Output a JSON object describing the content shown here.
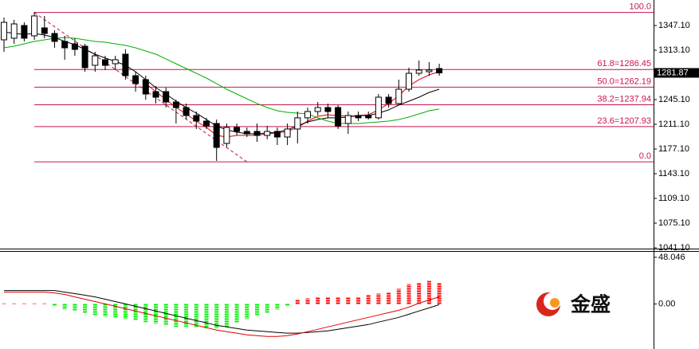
{
  "chart_data": [
    {
      "type": "candlestick",
      "ylim": [
        1040,
        1382.2
      ],
      "yticks": [
        {
          "value": 1347.1,
          "label": "1347.10"
        },
        {
          "value": 1313.1,
          "label": "1313.10"
        },
        {
          "value": 1245.1,
          "label": "1245.10"
        },
        {
          "value": 1211.1,
          "label": "1211.10"
        },
        {
          "value": 1177.1,
          "label": "1177.10"
        },
        {
          "value": 1143.1,
          "label": "1143.10"
        },
        {
          "value": 1109.1,
          "label": "1109.10"
        },
        {
          "value": 1075.1,
          "label": "1075.10"
        },
        {
          "value": 1041.1,
          "label": "1041.10"
        }
      ],
      "open": [
        1327.4,
        1329.6,
        1347.1,
        1332.9,
        1343.8,
        1336.1,
        1325.2,
        1321.9,
        1318.6,
        1292.3,
        1300.0,
        1294.5,
        1307.6,
        1278.0,
        1272.6,
        1256.1,
        1256.1,
        1241.8,
        1234.2,
        1223.2,
        1215.5,
        1212.2,
        1184.8,
        1206.8,
        1201.3,
        1201.3,
        1195.8,
        1201.3,
        1193.6,
        1204.6,
        1220.0,
        1228.7,
        1234.2,
        1234.2,
        1212.2,
        1223.2,
        1223.2,
        1220.0,
        1248.4,
        1239.7,
        1259.4,
        1281.3,
        1283.5,
        1287.9
      ],
      "high": [
        1358.1,
        1354.8,
        1351.5,
        1365.8,
        1360.3,
        1340.5,
        1332.9,
        1329.6,
        1321.9,
        1310.9,
        1305.4,
        1305.4,
        1314.2,
        1283.5,
        1278.0,
        1263.8,
        1261.6,
        1245.1,
        1239.7,
        1228.7,
        1220.0,
        1217.7,
        1212.2,
        1212.2,
        1206.8,
        1212.2,
        1208.9,
        1206.8,
        1212.2,
        1228.7,
        1234.2,
        1241.8,
        1239.7,
        1237.5,
        1228.7,
        1228.7,
        1228.7,
        1252.8,
        1252.8,
        1272.6,
        1289.0,
        1298.9,
        1296.7,
        1294.5
      ],
      "low": [
        1310.9,
        1321.9,
        1325.2,
        1327.4,
        1329.6,
        1316.4,
        1300.0,
        1305.4,
        1283.5,
        1283.5,
        1285.7,
        1285.7,
        1272.6,
        1256.1,
        1245.1,
        1239.7,
        1234.2,
        1212.2,
        1217.7,
        1204.6,
        1204.6,
        1160.7,
        1179.3,
        1195.8,
        1193.6,
        1187.0,
        1190.3,
        1182.6,
        1182.6,
        1184.8,
        1212.2,
        1223.2,
        1220.0,
        1204.6,
        1198.0,
        1215.5,
        1217.7,
        1217.7,
        1234.2,
        1237.5,
        1256.1,
        1278.0,
        1278.0,
        1278.0
      ],
      "close": [
        1351.5,
        1349.3,
        1329.6,
        1360.3,
        1336.1,
        1325.2,
        1316.4,
        1314.2,
        1289.0,
        1305.4,
        1292.3,
        1300.0,
        1278.0,
        1267.1,
        1252.8,
        1248.4,
        1241.8,
        1234.2,
        1223.2,
        1215.5,
        1208.9,
        1179.3,
        1206.8,
        1201.3,
        1198.0,
        1195.8,
        1201.3,
        1193.6,
        1204.6,
        1220.0,
        1228.7,
        1234.2,
        1228.7,
        1208.9,
        1223.2,
        1220.0,
        1220.0,
        1248.4,
        1239.7,
        1259.4,
        1281.3,
        1285.7,
        1285.7,
        1281.87
      ],
      "overlays": [
        {
          "color": "#e00000",
          "values": [
            null,
            null,
            null,
            null,
            null,
            null,
            null,
            null,
            null,
            null,
            null,
            null,
            null,
            null,
            1267.1,
            1256.1,
            1245.1,
            1234.2,
            1225.4,
            1215.5,
            1206.8,
            1195.8,
            1193.6,
            1195.8,
            1195.8,
            1195.8,
            1198.0,
            1199.1,
            1201.3,
            1206.8,
            1215.5,
            1222.1,
            1224.3,
            1223.2,
            1222.1,
            1223.2,
            1224.3,
            1230.9,
            1239.7,
            1250.6,
            1263.8,
            1272.6,
            1279.1,
            1283.5
          ]
        },
        {
          "color": "#000000",
          "values": [
            1338.3,
            1336.1,
            1335.0,
            1336.1,
            1333.9,
            1330.7,
            1325.2,
            1320.8,
            1314.2,
            1307.6,
            1302.2,
            1297.8,
            1292.3,
            1283.5,
            1272.6,
            1261.6,
            1252.8,
            1242.9,
            1234.2,
            1226.5,
            1217.7,
            1208.9,
            1203.5,
            1200.2,
            1198.0,
            1198.0,
            1199.1,
            1200.2,
            1203.5,
            1208.9,
            1214.4,
            1217.7,
            1220.0,
            1220.0,
            1221.1,
            1223.2,
            1223.2,
            1226.5,
            1230.9,
            1237.5,
            1242.9,
            1248.4,
            1255.0,
            1259.4
          ]
        },
        {
          "color": "#00b000",
          "values": [
            1316.4,
            1318.6,
            1321.9,
            1325.2,
            1327.4,
            1329.6,
            1330.7,
            1329.6,
            1327.4,
            1325.2,
            1324.1,
            1321.9,
            1319.7,
            1316.4,
            1312.0,
            1307.6,
            1301.1,
            1294.5,
            1287.9,
            1281.3,
            1274.7,
            1267.1,
            1259.4,
            1252.8,
            1246.2,
            1239.7,
            1234.2,
            1229.8,
            1227.6,
            1226.5,
            1225.4,
            1220.0,
            1215.5,
            1212.2,
            1212.2,
            1212.2,
            1213.3,
            1214.4,
            1215.5,
            1217.7,
            1221.1,
            1225.4,
            1229.8,
            1232.0
          ]
        }
      ],
      "fibonacci": {
        "color": "#c4174a",
        "trendline": {
          "from": [
            3,
            1365.0
          ],
          "to": [
            24,
            1159.4
          ]
        },
        "levels": [
          {
            "ratio": 100,
            "price": 1365.0,
            "label": "100.0"
          },
          {
            "ratio": 61.8,
            "price": 1286.45,
            "label": "61.8=1286.45"
          },
          {
            "ratio": 50,
            "price": 1262.19,
            "label": "50.0=1262.19"
          },
          {
            "ratio": 38.2,
            "price": 1237.94,
            "label": "38.2=1237.94"
          },
          {
            "ratio": 23.6,
            "price": 1207.93,
            "label": "23.6=1207.93"
          },
          {
            "ratio": 0,
            "price": 1159.4,
            "label": "0.0"
          }
        ]
      },
      "current_price": 1281.87
    },
    {
      "type": "macd",
      "ylim": [
        -46.4,
        53.7
      ],
      "yticks": [
        48.046,
        {
          "value": 0,
          "label": "0.00"
        }
      ],
      "histogram": {
        "up_color": "#ff0000",
        "down_color": "#00ee00",
        "values": [
          0.5,
          0.5,
          0.5,
          0.5,
          0.5,
          -1.6,
          -5.7,
          -7.3,
          -9.8,
          -11.4,
          -13.0,
          -13.8,
          -15.5,
          -17.1,
          -18.7,
          -20.4,
          -22.0,
          -23.6,
          -23.6,
          -23.6,
          -25.2,
          -25.2,
          -23.6,
          -19.5,
          -15.5,
          -11.4,
          -9.0,
          -5.7,
          -2.4,
          4.1,
          5.7,
          7.3,
          7.3,
          7.3,
          7.3,
          7.3,
          9.0,
          10.6,
          12.2,
          15.5,
          20.4,
          22.0,
          23.6,
          22.0
        ]
      },
      "lines": [
        {
          "color": "#000000",
          "values": [
            13.8,
            13.8,
            13.8,
            13.8,
            13.8,
            13.8,
            12.2,
            10.6,
            9.0,
            7.3,
            4.9,
            2.4,
            0,
            -2.4,
            -4.9,
            -7.3,
            -9.8,
            -12.2,
            -14.7,
            -17.1,
            -19.5,
            -22.0,
            -23.6,
            -25.2,
            -26.9,
            -27.7,
            -28.5,
            -29.3,
            -30.1,
            -30.1,
            -29.3,
            -28.5,
            -27.7,
            -26.1,
            -24.4,
            -22.8,
            -21.2,
            -18.7,
            -16.3,
            -13.8,
            -10.6,
            -7.3,
            -4.1,
            -0.8
          ]
        },
        {
          "color": "#e00000",
          "values": [
            12.2,
            12.2,
            12.2,
            12.2,
            12.2,
            11.4,
            9.8,
            7.3,
            4.9,
            2.4,
            0,
            -2.4,
            -4.9,
            -7.3,
            -9.8,
            -12.2,
            -14.7,
            -17.1,
            -19.5,
            -22.0,
            -24.4,
            -26.9,
            -28.5,
            -30.1,
            -31.8,
            -32.6,
            -33.4,
            -33.4,
            -32.6,
            -30.9,
            -28.5,
            -26.1,
            -23.6,
            -21.2,
            -18.7,
            -16.3,
            -13.8,
            -11.4,
            -9.0,
            -6.5,
            -3.3,
            0.8,
            4.1,
            7.3
          ]
        }
      ]
    }
  ],
  "watermark": "金盛"
}
